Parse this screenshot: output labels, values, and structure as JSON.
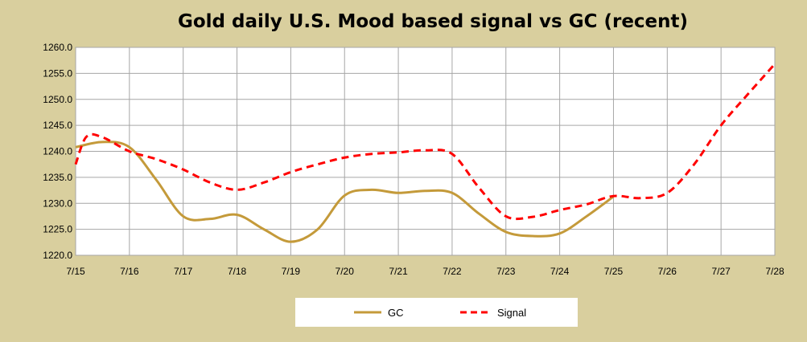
{
  "chart_data": {
    "type": "line",
    "title": "Gold daily U.S. Mood based signal vs GC (recent)",
    "xlabel": "",
    "ylabel": "",
    "x_ticks": [
      "7/15",
      "7/16",
      "7/17",
      "7/18",
      "7/19",
      "7/20",
      "7/21",
      "7/22",
      "7/23",
      "7/24",
      "7/25",
      "7/26",
      "7/27",
      "7/28"
    ],
    "y_ticks": [
      "1220.0",
      "1225.0",
      "1230.0",
      "1235.0",
      "1240.0",
      "1245.0",
      "1250.0",
      "1255.0",
      "1260.0"
    ],
    "ylim": [
      1220,
      1260
    ],
    "grid": true,
    "legend_position": "bottom",
    "series": [
      {
        "name": "GC",
        "color": "#c49a3a",
        "style": "solid",
        "x": [
          0,
          0.5,
          1,
          1.5,
          2,
          2.5,
          3,
          3.5,
          4,
          4.5,
          5,
          5.5,
          6,
          6.5,
          7,
          7.5,
          8,
          8.5,
          9,
          9.5,
          10
        ],
        "values": [
          1240.8,
          1241.8,
          1240.8,
          1234.5,
          1227.5,
          1227.0,
          1227.8,
          1225.0,
          1222.6,
          1225.0,
          1231.5,
          1232.6,
          1232.0,
          1232.4,
          1232.0,
          1228.0,
          1224.5,
          1223.7,
          1224.2,
          1227.5,
          1231.3
        ]
      },
      {
        "name": "Signal",
        "color": "#ff0000",
        "style": "dashed",
        "x": [
          0,
          0.2,
          0.5,
          1,
          1.5,
          2,
          2.5,
          3,
          3.5,
          4,
          4.5,
          5,
          5.5,
          6,
          6.5,
          7,
          7.5,
          8,
          8.5,
          9,
          9.5,
          10,
          10.5,
          11,
          11.5,
          12,
          12.5,
          13
        ],
        "values": [
          1237.5,
          1242.8,
          1242.7,
          1240.0,
          1238.5,
          1236.5,
          1234.0,
          1232.6,
          1234.0,
          1236.0,
          1237.5,
          1238.8,
          1239.5,
          1239.8,
          1240.2,
          1239.5,
          1233.0,
          1227.5,
          1227.4,
          1228.7,
          1229.8,
          1231.4,
          1231.0,
          1232.0,
          1237.5,
          1245.0,
          1251.0,
          1256.8
        ]
      }
    ]
  }
}
